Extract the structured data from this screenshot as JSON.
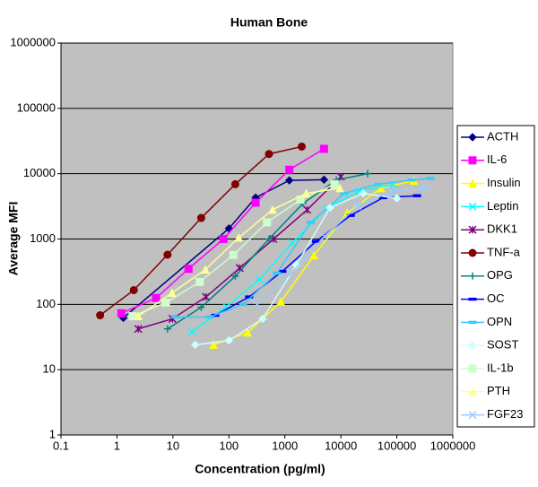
{
  "chart_data": {
    "type": "line",
    "title": "Human Bone",
    "x_label": "Concentration (pg/ml)",
    "y_label": "Average MFI",
    "log_x": true,
    "log_y": true,
    "grid": true,
    "legend": "right",
    "xlim": [
      0.1,
      1000000
    ],
    "xticks": [
      0.1,
      1,
      10,
      100,
      1000,
      10000,
      100000,
      1000000
    ],
    "ylim": [
      1,
      1000000
    ],
    "yticks": [
      1,
      10,
      100,
      1000,
      10000,
      100000,
      1000000
    ],
    "series": [
      {
        "name": "ACTH",
        "color": "#000080",
        "marker": "diamond",
        "x": [
          1.3,
          100,
          300,
          1200,
          5000
        ],
        "values": [
          62,
          1450,
          4300,
          7900,
          8100
        ]
      },
      {
        "name": "IL-6",
        "color": "#ff00ff",
        "marker": "square",
        "x": [
          1.2,
          5,
          19,
          80,
          300,
          1200,
          5000
        ],
        "values": [
          73,
          125,
          350,
          1000,
          3600,
          11500,
          24000
        ]
      },
      {
        "name": "Insulin",
        "color": "#ffff00",
        "marker": "triangle",
        "x": [
          53,
          215,
          850,
          3300,
          13000,
          52000,
          200000
        ],
        "values": [
          24,
          37,
          110,
          560,
          2500,
          6000,
          7800
        ]
      },
      {
        "name": "Leptin",
        "color": "#00ffff",
        "marker": "x",
        "x": [
          22,
          90,
          350,
          1350,
          5400,
          21000,
          85000
        ],
        "values": [
          38,
          92,
          240,
          870,
          2900,
          5400,
          6800
        ]
      },
      {
        "name": "DKK1",
        "color": "#800080",
        "marker": "star",
        "x": [
          2.4,
          9.8,
          39,
          156,
          625,
          2500,
          10000
        ],
        "values": [
          42,
          60,
          130,
          360,
          1000,
          2800,
          9000
        ]
      },
      {
        "name": "TNF-a",
        "color": "#800000",
        "marker": "circle",
        "x": [
          0.5,
          2,
          8,
          32,
          130,
          520,
          2000
        ],
        "values": [
          68,
          165,
          575,
          2100,
          6900,
          20000,
          26000
        ]
      },
      {
        "name": "OPG",
        "color": "#008080",
        "marker": "plus",
        "x": [
          8,
          32,
          130,
          520,
          2100,
          8300,
          30000
        ],
        "values": [
          42,
          90,
          270,
          1000,
          3500,
          8000,
          10000
        ]
      },
      {
        "name": "OC",
        "color": "#0000ff",
        "marker": "dash",
        "x": [
          57,
          230,
          900,
          3600,
          15000,
          57000,
          230000
        ],
        "values": [
          68,
          130,
          320,
          920,
          2300,
          4300,
          4600
        ]
      },
      {
        "name": "OPN",
        "color": "#33ccff",
        "marker": "dash",
        "x": [
          11,
          45,
          180,
          720,
          2900,
          11500,
          46000,
          185000,
          400000
        ],
        "values": [
          64,
          64,
          100,
          300,
          1800,
          5000,
          6900,
          8000,
          8500
        ]
      },
      {
        "name": "SOST",
        "color": "#ccffff",
        "marker": "diamond",
        "x": [
          25,
          100,
          400,
          1600,
          6400,
          25000,
          100000
        ],
        "values": [
          24,
          28,
          60,
          400,
          3000,
          5000,
          4200
        ]
      },
      {
        "name": "IL-1b",
        "color": "#ccffcc",
        "marker": "square",
        "x": [
          1.9,
          7.5,
          30,
          120,
          480,
          1900,
          7700
        ],
        "values": [
          66,
          106,
          220,
          570,
          1800,
          4000,
          6900
        ]
      },
      {
        "name": "PTH",
        "color": "#ffff99",
        "marker": "triangle",
        "x": [
          2.4,
          9.6,
          38,
          150,
          600,
          2400,
          9600
        ],
        "values": [
          66,
          150,
          340,
          1050,
          2800,
          5000,
          6000
        ]
      },
      {
        "name": "FGF23",
        "color": "#99ccff",
        "marker": "x",
        "x": [
          320,
          1300,
          5100,
          20000,
          82000,
          330000
        ],
        "values": [
          100,
          300,
          1100,
          3200,
          5400,
          6000
        ]
      }
    ]
  }
}
